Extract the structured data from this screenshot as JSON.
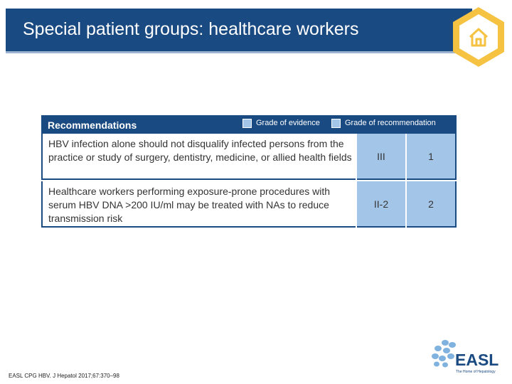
{
  "slide": {
    "title": "Special patient groups: healthcare workers"
  },
  "table": {
    "header_label": "Recommendations",
    "legend": [
      {
        "label": "Grade of evidence",
        "color": "#a3c6e8"
      },
      {
        "label": "Grade of recommendation",
        "color": "#a3c6e8"
      }
    ],
    "rows": [
      {
        "text": "HBV infection alone should not disqualify infected persons from the practice or study of surgery, dentistry, medicine, or allied health fields",
        "evidence": "III",
        "recommendation": "1"
      },
      {
        "text": "Healthcare workers performing exposure-prone procedures with serum HBV DNA >200 IU/ml may be treated with NAs to reduce transmission risk",
        "evidence": "II-2",
        "recommendation": "2"
      }
    ]
  },
  "footer": {
    "citation": "EASL CPG HBV. J Hepatol 2017;67:370–98",
    "logo_text": "EASL",
    "logo_tagline": "The Home of Hepatology"
  },
  "colors": {
    "brand_blue": "#1a4a82",
    "cell_blue": "#a3c6e8",
    "badge_yellow": "#f5c242"
  },
  "icons": {
    "home": "home-icon"
  }
}
